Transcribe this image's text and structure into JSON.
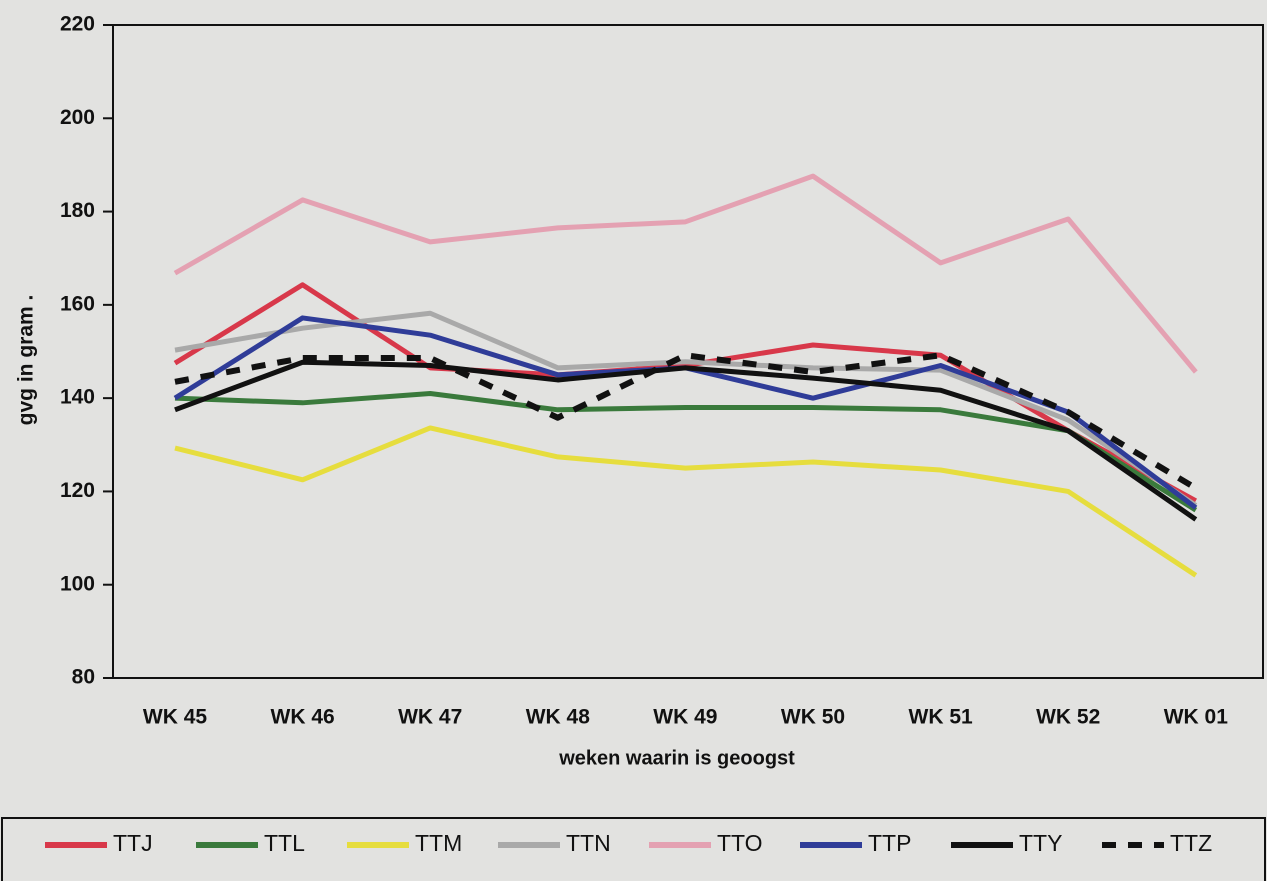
{
  "chart_data": {
    "type": "line",
    "x_label": "weken waarin is geoogst",
    "y_label": "gvg in gram .",
    "categories": [
      "WK 45",
      "WK 46",
      "WK 47",
      "WK 48",
      "WK 49",
      "WK 50",
      "WK 51",
      "WK 52",
      "WK 01"
    ],
    "ylim": [
      80,
      220
    ],
    "yticks": [
      80,
      100,
      120,
      140,
      160,
      180,
      200,
      220
    ],
    "legend": "bottom",
    "series": [
      {
        "name": "TTJ",
        "color": "#d8384a",
        "values": [
          147.5,
          164.3,
          146.5,
          145,
          147,
          151.4,
          149.2,
          133,
          118
        ]
      },
      {
        "name": "TTL",
        "color": "#3a7a3c",
        "values": [
          140,
          139,
          141,
          137.5,
          138,
          138,
          137.5,
          133,
          116
        ]
      },
      {
        "name": "TTM",
        "color": "#e6dd3e",
        "values": [
          129.3,
          122.5,
          133.6,
          127.4,
          125,
          126.3,
          124.6,
          120,
          102
        ]
      },
      {
        "name": "TTN",
        "color": "#a9a9a9",
        "values": [
          150.3,
          155,
          158.2,
          146.5,
          147.8,
          146.5,
          146,
          135.3,
          117
        ]
      },
      {
        "name": "TTO",
        "color": "#e4a1b2",
        "values": [
          166.8,
          182.5,
          173.5,
          176.5,
          177.8,
          187.6,
          169,
          178.4,
          145.6
        ]
      },
      {
        "name": "TTP",
        "color": "#2f3c98",
        "values": [
          140,
          157.2,
          153.5,
          145,
          146.5,
          140,
          147,
          137,
          116.5
        ]
      },
      {
        "name": "TTY",
        "color": "#111111",
        "values": [
          137.5,
          147.7,
          147,
          143.9,
          146.5,
          144.3,
          141.7,
          133,
          114
        ]
      },
      {
        "name": "TTZ",
        "color": "#111111",
        "dashed": true,
        "values": [
          143.5,
          148.6,
          148.6,
          135.8,
          149.2,
          145.6,
          149.2,
          137,
          120.7
        ]
      }
    ]
  }
}
